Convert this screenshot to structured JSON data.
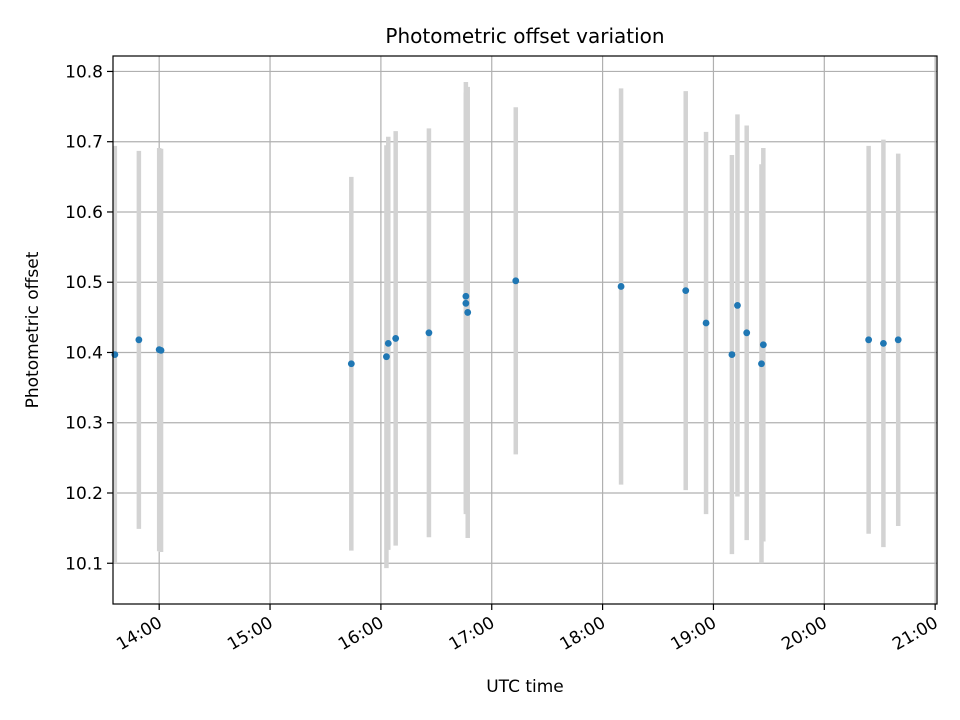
{
  "chart_data": {
    "type": "scatter",
    "title": "Photometric offset variation",
    "xlabel": "UTC time",
    "ylabel": "Photometric offset",
    "x_axis": "time",
    "xlim": [
      "13:35",
      "21:01"
    ],
    "ylim": [
      10.042,
      10.822
    ],
    "x_ticks": [
      "14:00",
      "15:00",
      "16:00",
      "17:00",
      "18:00",
      "19:00",
      "20:00",
      "21:00"
    ],
    "y_ticks": [
      "10.1",
      "10.2",
      "10.3",
      "10.4",
      "10.5",
      "10.6",
      "10.7",
      "10.8"
    ],
    "grid": true,
    "colors": {
      "points": "#1f77b4",
      "errorbars": "#d3d3d3",
      "grid": "#b0b0b0"
    },
    "series": [
      {
        "points": [
          {
            "x": "13:36",
            "y": 10.397,
            "err": 0.297
          },
          {
            "x": "13:49",
            "y": 10.418,
            "err": 0.269
          },
          {
            "x": "14:00",
            "y": 10.404,
            "err": 0.287
          },
          {
            "x": "14:01",
            "y": 10.403,
            "err": 0.287
          },
          {
            "x": "15:44",
            "y": 10.384,
            "err": 0.266
          },
          {
            "x": "16:03",
            "y": 10.394,
            "err": 0.301
          },
          {
            "x": "16:04",
            "y": 10.413,
            "err": 0.294
          },
          {
            "x": "16:08",
            "y": 10.42,
            "err": 0.295
          },
          {
            "x": "16:26",
            "y": 10.428,
            "err": 0.291
          },
          {
            "x": "16:46",
            "y": 10.48,
            "err": 0.305
          },
          {
            "x": "16:46",
            "y": 10.47,
            "err": 0.3
          },
          {
            "x": "16:47",
            "y": 10.457,
            "err": 0.321
          },
          {
            "x": "17:13",
            "y": 10.502,
            "err": 0.247
          },
          {
            "x": "18:10",
            "y": 10.494,
            "err": 0.282
          },
          {
            "x": "18:45",
            "y": 10.488,
            "err": 0.284
          },
          {
            "x": "18:56",
            "y": 10.442,
            "err": 0.272
          },
          {
            "x": "19:10",
            "y": 10.397,
            "err": 0.284
          },
          {
            "x": "19:13",
            "y": 10.467,
            "err": 0.272
          },
          {
            "x": "19:18",
            "y": 10.428,
            "err": 0.295
          },
          {
            "x": "19:26",
            "y": 10.384,
            "err": 0.284
          },
          {
            "x": "19:27",
            "y": 10.411,
            "err": 0.28
          },
          {
            "x": "20:24",
            "y": 10.418,
            "err": 0.276
          },
          {
            "x": "20:32",
            "y": 10.413,
            "err": 0.29
          },
          {
            "x": "20:40",
            "y": 10.418,
            "err": 0.265
          }
        ]
      }
    ]
  }
}
